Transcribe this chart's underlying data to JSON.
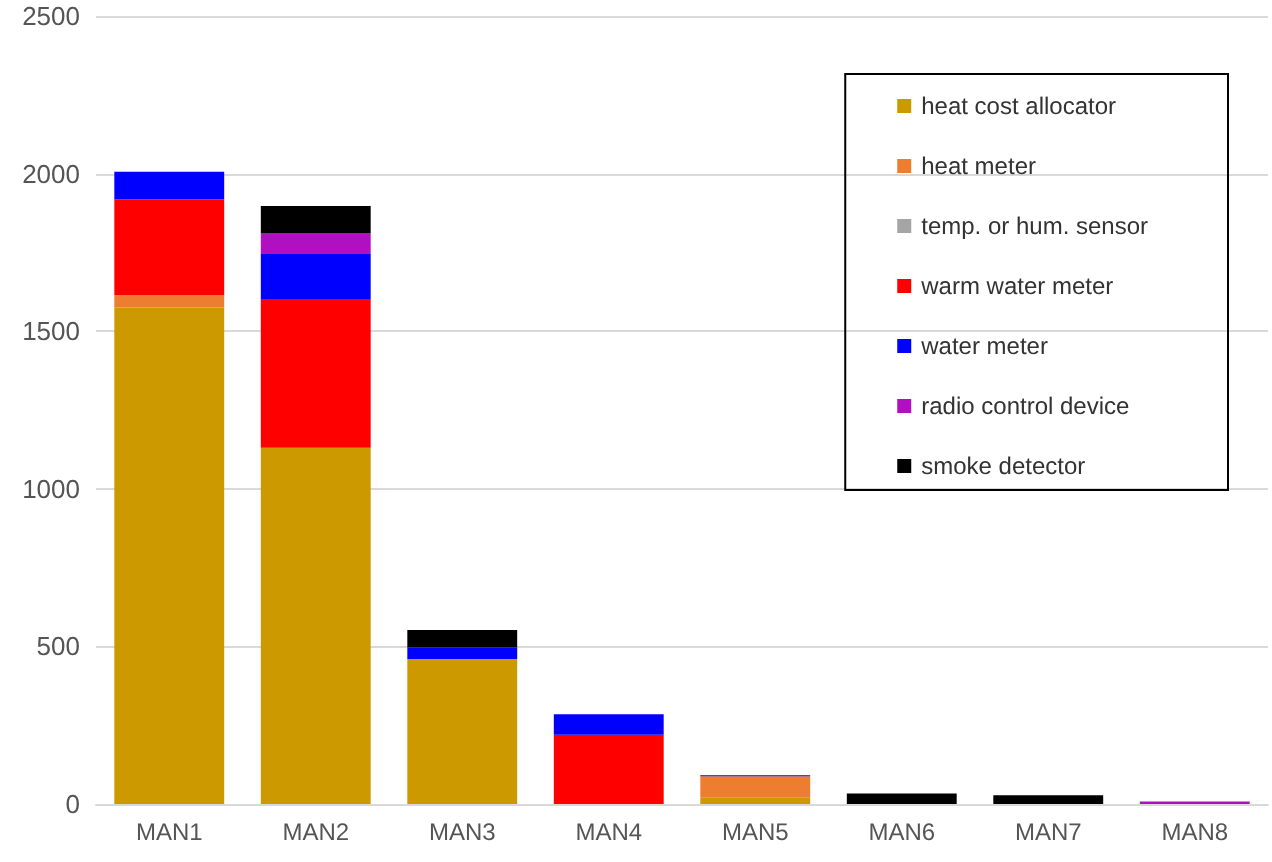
{
  "chart_data": {
    "type": "bar",
    "stacked": true,
    "categories": [
      "MAN1",
      "MAN2",
      "MAN3",
      "MAN4",
      "MAN5",
      "MAN6",
      "MAN7",
      "MAN8"
    ],
    "series": [
      {
        "name": "heat cost allocator",
        "color": "#cc9900",
        "values": [
          1575,
          1130,
          460,
          0,
          20,
          0,
          0,
          0
        ]
      },
      {
        "name": "heat meter",
        "color": "#ed7d31",
        "values": [
          40,
          0,
          0,
          0,
          68,
          0,
          0,
          0
        ]
      },
      {
        "name": "temp. or hum. sensor",
        "color": "#a5a5a5",
        "values": [
          0,
          0,
          0,
          0,
          0,
          0,
          0,
          0
        ]
      },
      {
        "name": "warm water meter",
        "color": "#ff0000",
        "values": [
          303,
          470,
          0,
          220,
          0,
          0,
          0,
          0
        ]
      },
      {
        "name": "water meter",
        "color": "#0000ff",
        "values": [
          88,
          147,
          37,
          65,
          3,
          0,
          0,
          0
        ]
      },
      {
        "name": "radio control device",
        "color": "#b010c0",
        "values": [
          0,
          63,
          0,
          0,
          0,
          0,
          0,
          8
        ]
      },
      {
        "name": "smoke detector",
        "color": "#000000",
        "values": [
          0,
          87,
          55,
          0,
          0,
          33,
          28,
          0
        ]
      }
    ],
    "ylim": [
      0,
      2500
    ],
    "yticks": [
      0,
      500,
      1000,
      1500,
      2000,
      2500
    ],
    "grid": "y",
    "legend": "top right"
  }
}
